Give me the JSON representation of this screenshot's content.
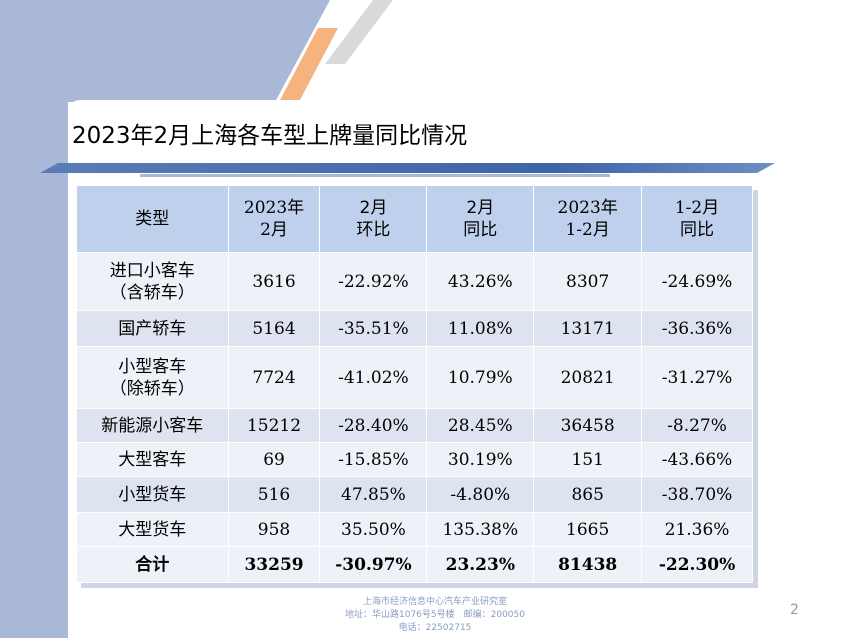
{
  "slide": {
    "title": "2023年2月上海各车型上牌量同比情况",
    "page_number": "2"
  },
  "table": {
    "headers": [
      [
        "类型"
      ],
      [
        "2023年",
        "2月"
      ],
      [
        "2月",
        "环比"
      ],
      [
        "2月",
        "同比"
      ],
      [
        "2023年",
        "1-2月"
      ],
      [
        "1-2月",
        "同比"
      ]
    ],
    "rows": [
      {
        "type": [
          "进口小客车",
          "（含轿车）"
        ],
        "feb": "3616",
        "mom": "-22.92%",
        "yoy": "43.26%",
        "ytd": "8307",
        "ytd_yoy": "-24.69%"
      },
      {
        "type": [
          "国产轿车"
        ],
        "feb": "5164",
        "mom": "-35.51%",
        "yoy": "11.08%",
        "ytd": "13171",
        "ytd_yoy": "-36.36%"
      },
      {
        "type": [
          "小型客车",
          "（除轿车）"
        ],
        "feb": "7724",
        "mom": "-41.02%",
        "yoy": "10.79%",
        "ytd": "20821",
        "ytd_yoy": "-31.27%"
      },
      {
        "type": [
          "新能源小客车"
        ],
        "feb": "15212",
        "mom": "-28.40%",
        "yoy": "28.45%",
        "ytd": "36458",
        "ytd_yoy": "-8.27%"
      },
      {
        "type": [
          "大型客车"
        ],
        "feb": "69",
        "mom": "-15.85%",
        "yoy": "30.19%",
        "ytd": "151",
        "ytd_yoy": "-43.66%"
      },
      {
        "type": [
          "小型货车"
        ],
        "feb": "516",
        "mom": "47.85%",
        "yoy": "-4.80%",
        "ytd": "865",
        "ytd_yoy": "-38.70%"
      },
      {
        "type": [
          "大型货车"
        ],
        "feb": "958",
        "mom": "35.50%",
        "yoy": "135.38%",
        "ytd": "1665",
        "ytd_yoy": "21.36%"
      }
    ],
    "total": {
      "type": "合计",
      "feb": "33259",
      "mom": "-30.97%",
      "yoy": "23.23%",
      "ytd": "81438",
      "ytd_yoy": "-22.30%"
    }
  },
  "footer": {
    "line1": "上海市经济信息中心汽车产业研究室",
    "line2": "地址：华山路1076号5号楼　邮编：200050",
    "line3": "电话：22502715"
  },
  "colors": {
    "header_bg": "#bed0ec",
    "row_light": "#eef1f8",
    "row_dark": "#dde4f0",
    "accent_orange": "#f6b37d",
    "side_band": "#a9b8d6",
    "title_bar": "#3d64a8"
  }
}
